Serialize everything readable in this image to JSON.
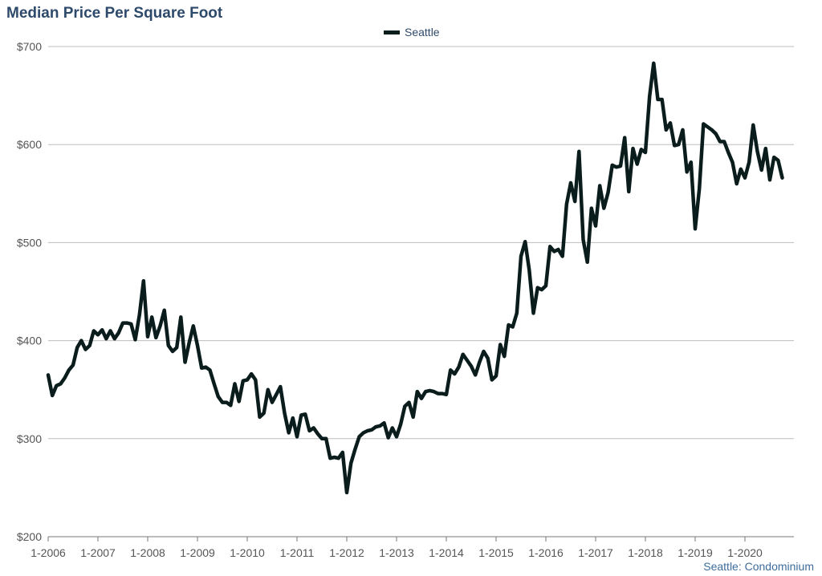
{
  "chart_data": {
    "type": "line",
    "title": "Median Price Per Square Foot",
    "xlabel": "",
    "ylabel": "",
    "ylim": [
      200,
      700
    ],
    "y_ticks": [
      "$200",
      "$300",
      "$400",
      "$500",
      "$600",
      "$700"
    ],
    "y_tick_values": [
      200,
      300,
      400,
      500,
      600,
      700
    ],
    "x_ticks": [
      "1-2006",
      "1-2007",
      "1-2008",
      "1-2009",
      "1-2010",
      "1-2011",
      "1-2012",
      "1-2013",
      "1-2014",
      "1-2015",
      "1-2016",
      "1-2017",
      "1-2018",
      "1-2019",
      "1-2020"
    ],
    "x_start": "2006-01",
    "x_end": "2020-11",
    "grid": true,
    "legend_position": "top-center",
    "series": [
      {
        "name": "Seattle",
        "color": "#0b1c1c",
        "values": [
          365,
          344,
          354,
          356,
          362,
          370,
          375,
          393,
          400,
          391,
          395,
          410,
          406,
          411,
          402,
          410,
          402,
          408,
          418,
          418,
          417,
          401,
          426,
          461,
          404,
          424,
          403,
          415,
          431,
          395,
          389,
          393,
          424,
          378,
          398,
          415,
          395,
          372,
          373,
          370,
          356,
          343,
          337,
          337,
          334,
          356,
          338,
          359,
          360,
          366,
          360,
          322,
          326,
          350,
          337,
          345,
          353,
          326,
          306,
          321,
          302,
          324,
          325,
          308,
          311,
          305,
          300,
          300,
          280,
          281,
          280,
          286,
          245,
          275,
          289,
          302,
          306,
          308,
          309,
          312,
          313,
          316,
          301,
          311,
          302,
          315,
          333,
          337,
          322,
          348,
          341,
          348,
          349,
          348,
          346,
          346,
          345,
          370,
          366,
          373,
          386,
          380,
          374,
          365,
          378,
          389,
          382,
          360,
          364,
          396,
          384,
          416,
          414,
          428,
          486,
          501,
          472,
          428,
          454,
          452,
          456,
          496,
          491,
          493,
          486,
          539,
          561,
          542,
          593,
          503,
          480,
          535,
          517,
          558,
          535,
          551,
          579,
          577,
          578,
          607,
          552,
          596,
          580,
          595,
          592,
          649,
          683,
          646,
          646,
          615,
          622,
          599,
          600,
          615,
          572,
          582,
          514,
          555,
          621,
          618,
          615,
          611,
          603,
          603,
          592,
          582,
          560,
          575,
          566,
          582,
          620,
          593,
          574,
          596,
          564,
          587,
          584,
          566
        ]
      }
    ],
    "footnote": "Seattle: Condominium"
  }
}
